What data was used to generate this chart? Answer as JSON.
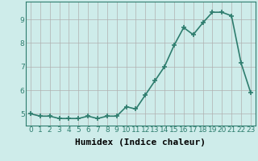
{
  "x": [
    0,
    1,
    2,
    3,
    4,
    5,
    6,
    7,
    8,
    9,
    10,
    11,
    12,
    13,
    14,
    15,
    16,
    17,
    18,
    19,
    20,
    21,
    22,
    23
  ],
  "y": [
    5.0,
    4.9,
    4.9,
    4.8,
    4.8,
    4.8,
    4.9,
    4.8,
    4.9,
    4.9,
    5.3,
    5.2,
    5.8,
    6.4,
    7.0,
    7.9,
    8.65,
    8.35,
    8.85,
    9.3,
    9.3,
    9.15,
    7.15,
    5.9
  ],
  "line_color": "#2e7d6e",
  "marker": "+",
  "markersize": 4,
  "markeredgewidth": 1.2,
  "background_color": "#ceecea",
  "grid_color": "#b0b0b0",
  "xlabel": "Humidex (Indice chaleur)",
  "xlabel_fontsize": 8,
  "title": "",
  "xlim": [
    -0.5,
    23.5
  ],
  "ylim": [
    4.5,
    9.75
  ],
  "yticks": [
    5,
    6,
    7,
    8,
    9
  ],
  "xticks": [
    0,
    1,
    2,
    3,
    4,
    5,
    6,
    7,
    8,
    9,
    10,
    11,
    12,
    13,
    14,
    15,
    16,
    17,
    18,
    19,
    20,
    21,
    22,
    23
  ],
  "tick_fontsize": 6.5,
  "linewidth": 1.2,
  "figwidth": 3.2,
  "figheight": 2.0,
  "dpi": 100
}
